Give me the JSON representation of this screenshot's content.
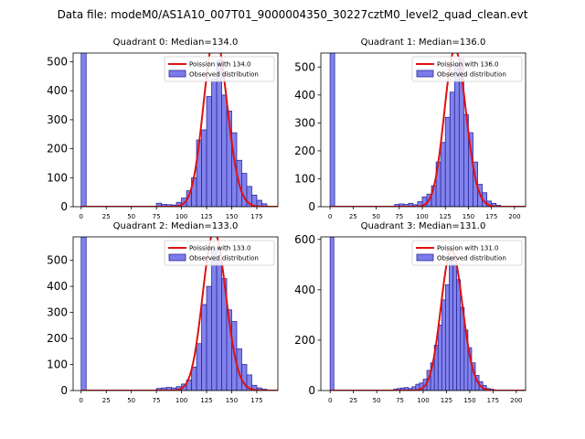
{
  "suptitle": "Data file: modeM0/AS1A10_007T01_9000004350_30227cztM0_level2_quad_clean.evt",
  "colors": {
    "bar_fill": "#7b7bea",
    "bar_edge": "#2a2aa0",
    "fit_line": "#e01010",
    "legend_edge": "#cccccc"
  },
  "chart_data": [
    {
      "type": "bar",
      "title": "Quadrant 0: Median=134.0",
      "median": 134.0,
      "legend": [
        "Poission with 134.0",
        "Observed distribution"
      ],
      "xlim": [
        -8,
        196
      ],
      "ylim": [
        0,
        530
      ],
      "xticks": [
        0,
        25,
        50,
        75,
        100,
        125,
        150,
        175
      ],
      "yticks": [
        0,
        100,
        200,
        300,
        400,
        500
      ],
      "bin_width": 5,
      "bins": [
        [
          0,
          535
        ],
        [
          75,
          12
        ],
        [
          80,
          8
        ],
        [
          85,
          7
        ],
        [
          90,
          6
        ],
        [
          95,
          15
        ],
        [
          100,
          30
        ],
        [
          105,
          55
        ],
        [
          110,
          100
        ],
        [
          115,
          230
        ],
        [
          120,
          265
        ],
        [
          125,
          380
        ],
        [
          130,
          440
        ],
        [
          135,
          505
        ],
        [
          140,
          385
        ],
        [
          145,
          330
        ],
        [
          150,
          255
        ],
        [
          155,
          160
        ],
        [
          160,
          115
        ],
        [
          165,
          70
        ],
        [
          170,
          40
        ],
        [
          175,
          22
        ],
        [
          180,
          10
        ]
      ]
    },
    {
      "type": "bar",
      "title": "Quadrant 1: Median=136.0",
      "median": 136.0,
      "legend": [
        "Poission with 136.0",
        "Observed distribution"
      ],
      "xlim": [
        -10,
        212
      ],
      "ylim": [
        0,
        550
      ],
      "xticks": [
        0,
        25,
        50,
        75,
        100,
        125,
        150,
        175,
        200
      ],
      "yticks": [
        0,
        100,
        200,
        300,
        400,
        500
      ],
      "bin_width": 5,
      "bins": [
        [
          0,
          555
        ],
        [
          70,
          8
        ],
        [
          75,
          10
        ],
        [
          80,
          8
        ],
        [
          85,
          12
        ],
        [
          90,
          7
        ],
        [
          95,
          18
        ],
        [
          100,
          35
        ],
        [
          105,
          45
        ],
        [
          110,
          75
        ],
        [
          115,
          160
        ],
        [
          120,
          230
        ],
        [
          125,
          320
        ],
        [
          130,
          410
        ],
        [
          135,
          505
        ],
        [
          140,
          530
        ],
        [
          145,
          330
        ],
        [
          150,
          265
        ],
        [
          155,
          160
        ],
        [
          160,
          80
        ],
        [
          165,
          50
        ],
        [
          170,
          20
        ],
        [
          175,
          12
        ],
        [
          180,
          5
        ]
      ]
    },
    {
      "type": "bar",
      "title": "Quadrant 2: Median=133.0",
      "median": 133.0,
      "legend": [
        "Poission with 133.0",
        "Observed distribution"
      ],
      "xlim": [
        -8,
        196
      ],
      "ylim": [
        0,
        590
      ],
      "xticks": [
        0,
        25,
        50,
        75,
        100,
        125,
        150,
        175
      ],
      "yticks": [
        0,
        100,
        200,
        300,
        400,
        500
      ],
      "bin_width": 5,
      "bins": [
        [
          0,
          590
        ],
        [
          75,
          8
        ],
        [
          80,
          10
        ],
        [
          85,
          12
        ],
        [
          90,
          10
        ],
        [
          95,
          15
        ],
        [
          100,
          25
        ],
        [
          105,
          40
        ],
        [
          110,
          90
        ],
        [
          115,
          180
        ],
        [
          120,
          330
        ],
        [
          125,
          400
        ],
        [
          130,
          545
        ],
        [
          135,
          500
        ],
        [
          140,
          430
        ],
        [
          145,
          310
        ],
        [
          150,
          265
        ],
        [
          155,
          160
        ],
        [
          160,
          100
        ],
        [
          165,
          60
        ],
        [
          170,
          20
        ],
        [
          175,
          10
        ],
        [
          180,
          5
        ]
      ]
    },
    {
      "type": "bar",
      "title": "Quadrant 3: Median=131.0",
      "median": 131.0,
      "legend": [
        "Poission with 131.0",
        "Observed distribution"
      ],
      "xlim": [
        -10,
        210
      ],
      "ylim": [
        0,
        610
      ],
      "xticks": [
        0,
        25,
        50,
        75,
        100,
        125,
        150,
        175,
        200
      ],
      "yticks": [
        0,
        200,
        400,
        600
      ],
      "bin_width": 4,
      "bins": [
        [
          0,
          610
        ],
        [
          68,
          5
        ],
        [
          72,
          8
        ],
        [
          76,
          10
        ],
        [
          80,
          12
        ],
        [
          84,
          8
        ],
        [
          88,
          15
        ],
        [
          92,
          25
        ],
        [
          96,
          30
        ],
        [
          100,
          45
        ],
        [
          104,
          80
        ],
        [
          108,
          110
        ],
        [
          112,
          180
        ],
        [
          116,
          260
        ],
        [
          120,
          360
        ],
        [
          124,
          420
        ],
        [
          128,
          530
        ],
        [
          132,
          500
        ],
        [
          136,
          440
        ],
        [
          140,
          330
        ],
        [
          144,
          240
        ],
        [
          148,
          170
        ],
        [
          152,
          110
        ],
        [
          156,
          60
        ],
        [
          160,
          35
        ],
        [
          164,
          20
        ],
        [
          168,
          8
        ],
        [
          172,
          5
        ]
      ]
    }
  ]
}
